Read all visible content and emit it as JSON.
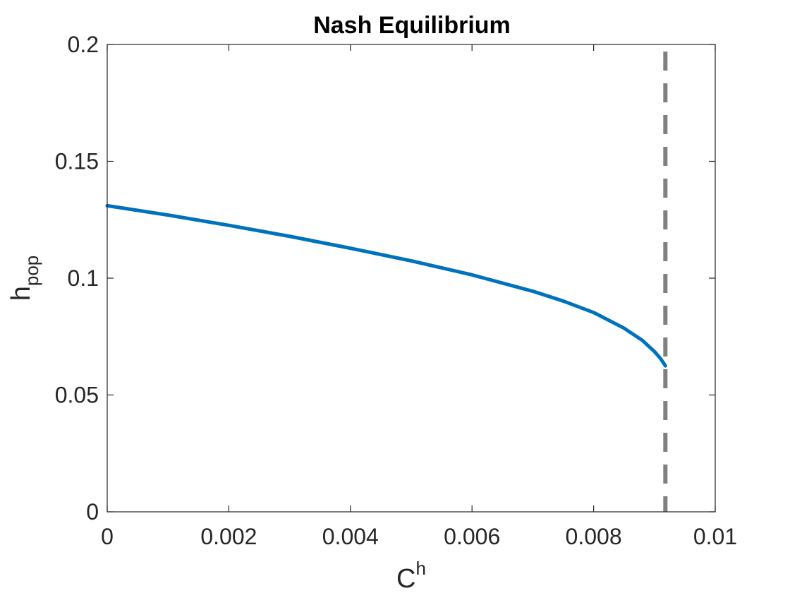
{
  "chart_data": {
    "type": "line",
    "title": "Nash Equilibrium",
    "xlabel": {
      "base": "C",
      "sup": "h"
    },
    "ylabel": {
      "base": "h",
      "sub": "pop"
    },
    "xlim": [
      0,
      0.01
    ],
    "ylim": [
      0,
      0.2
    ],
    "xticks": [
      0,
      0.002,
      0.004,
      0.006,
      0.008,
      0.01
    ],
    "xtick_labels": [
      "0",
      "0.002",
      "0.004",
      "0.006",
      "0.008",
      "0.01"
    ],
    "yticks": [
      0,
      0.05,
      0.1,
      0.15,
      0.2
    ],
    "ytick_labels": [
      "0",
      "0.05",
      "0.1",
      "0.15",
      "0.2"
    ],
    "grid": false,
    "series": [
      {
        "color": "#0072BD",
        "style": "solid",
        "x": [
          0,
          0.001,
          0.002,
          0.003,
          0.004,
          0.005,
          0.006,
          0.007,
          0.0075,
          0.008,
          0.0085,
          0.0088,
          0.009,
          0.0091,
          0.00918
        ],
        "y": [
          0.131,
          0.127,
          0.1226,
          0.1179,
          0.1128,
          0.1074,
          0.1014,
          0.0944,
          0.0902,
          0.0853,
          0.0786,
          0.0734,
          0.0686,
          0.0656,
          0.0625
        ]
      }
    ],
    "reference_lines": [
      {
        "orientation": "vertical",
        "x": 0.00918,
        "color": "#808080",
        "style": "dashed"
      }
    ]
  }
}
